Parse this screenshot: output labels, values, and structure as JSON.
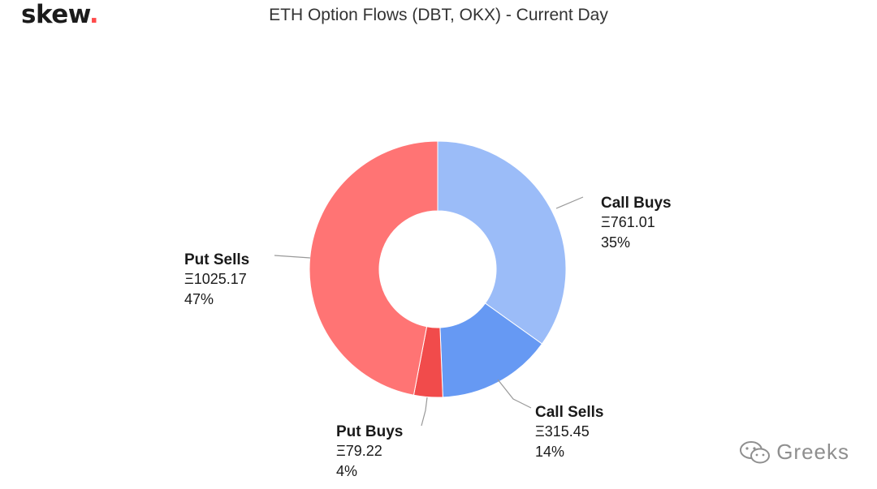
{
  "brand": {
    "name": "skew",
    "dot": "."
  },
  "watermark": {
    "text": "Greeks"
  },
  "chart_data": {
    "type": "pie",
    "title": "ETH Option Flows (DBT, OKX) - Current Day",
    "currency_symbol": "Ξ",
    "slices": [
      {
        "label": "Call Buys",
        "value": 761.01,
        "value_text": "Ξ761.01",
        "percent_text": "35%",
        "color": "#9bbcf8"
      },
      {
        "label": "Call Sells",
        "value": 315.45,
        "value_text": "Ξ315.45",
        "percent_text": "14%",
        "color": "#6699f3"
      },
      {
        "label": "Put Buys",
        "value": 79.22,
        "value_text": "Ξ79.22",
        "percent_text": "4%",
        "color": "#f14b4b"
      },
      {
        "label": "Put Sells",
        "value": 1025.17,
        "value_text": "Ξ1025.17",
        "percent_text": "47%",
        "color": "#ff7474"
      }
    ]
  }
}
